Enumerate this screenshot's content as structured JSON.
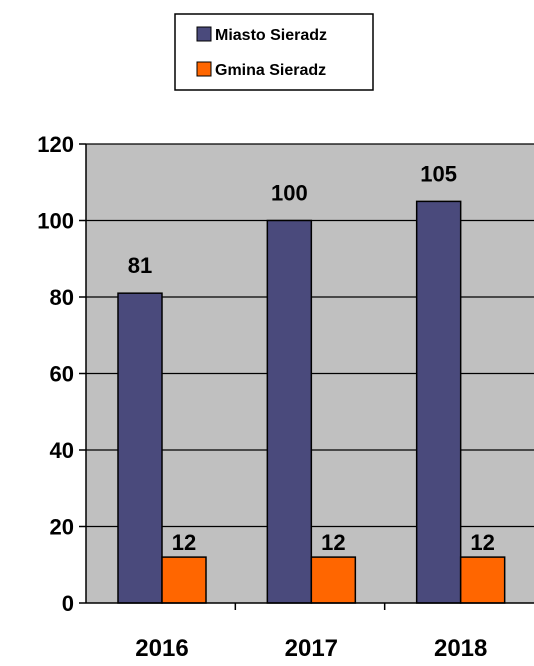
{
  "chart_data": {
    "type": "bar",
    "categories": [
      "2016",
      "2017",
      "2018"
    ],
    "series": [
      {
        "name": "Miasto Sieradz",
        "values": [
          81,
          100,
          105
        ],
        "color": "#4a4a7c"
      },
      {
        "name": "Gmina Sieradz",
        "values": [
          12,
          12,
          12
        ],
        "color": "#ff6600"
      }
    ],
    "y_ticks": [
      "0",
      "20",
      "40",
      "60",
      "80",
      "100",
      "120"
    ],
    "ylim": [
      0,
      120
    ],
    "grid": true,
    "legend_position": "top-center",
    "plot_background": "#c0c0c0"
  }
}
